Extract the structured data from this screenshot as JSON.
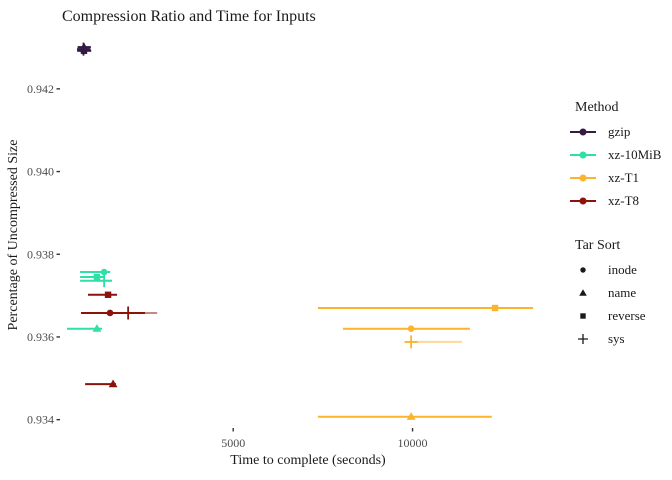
{
  "chart_data": {
    "type": "scatter",
    "title": "Compression Ratio and Time for Inputs",
    "xlabel": "Time to complete (seconds)",
    "ylabel": "Percentage of Uncompressed Size",
    "x_ticks": [
      5000,
      10000
    ],
    "y_ticks": [
      0.934,
      0.936,
      0.938,
      0.94,
      0.942
    ],
    "xlim": [
      170,
      14000
    ],
    "ylim": [
      0.93375,
      0.94323
    ],
    "grid": false,
    "legend_position": "right",
    "shape_map": {
      "inode": "circle",
      "name": "triangle",
      "reverse": "square",
      "sys": "plus"
    },
    "series": [
      {
        "name": "gzip",
        "color": "#351B44",
        "points": [
          {
            "sort": "inode",
            "time": 825,
            "ratio": 0.94293,
            "time_min": 650,
            "time_max": 1030
          },
          {
            "sort": "name",
            "time": 839,
            "ratio": 0.94301,
            "time_min": 660,
            "time_max": 1030
          },
          {
            "sort": "reverse",
            "time": 839,
            "ratio": 0.94292,
            "time_min": 650,
            "time_max": 1040
          },
          {
            "sort": "sys",
            "time": 825,
            "ratio": 0.94296,
            "time_min": 660,
            "time_max": 1020
          }
        ]
      },
      {
        "name": "xz-10MiB",
        "color": "#2EDFA6",
        "points": [
          {
            "sort": "inode",
            "time": 1400,
            "ratio": 0.93757,
            "time_min": 730,
            "time_max": 1570
          },
          {
            "sort": "reverse",
            "time": 1200,
            "ratio": 0.93745,
            "time_min": 730,
            "time_max": 1425
          },
          {
            "sort": "sys",
            "time": 1400,
            "ratio": 0.93736,
            "time_min": 730,
            "time_max": 1620
          },
          {
            "sort": "name",
            "time": 1200,
            "ratio": 0.9362,
            "time_min": 365,
            "time_max": 1340
          }
        ]
      },
      {
        "name": "xz-T1",
        "color": "#FCB42C",
        "points": [
          {
            "sort": "reverse",
            "time": 12300,
            "ratio": 0.9367,
            "time_min": 7360,
            "time_max": 13360
          },
          {
            "sort": "inode",
            "time": 9960,
            "ratio": 0.9362,
            "time_min": 8060,
            "time_max": 11600
          },
          {
            "sort": "sys",
            "time": 9960,
            "ratio": 0.93588,
            "time_min": 9960,
            "time_max": 11380,
            "bar_alpha": 0.5
          },
          {
            "sort": "name",
            "time": 9960,
            "ratio": 0.93407,
            "time_min": 7360,
            "time_max": 12210
          }
        ]
      },
      {
        "name": "xz-T8",
        "color": "#8C130B",
        "points": [
          {
            "sort": "reverse",
            "time": 1510,
            "ratio": 0.93702,
            "time_min": 950,
            "time_max": 1760
          },
          {
            "sort": "inode",
            "time": 1565,
            "ratio": 0.93658,
            "time_min": 755,
            "time_max": 2540
          },
          {
            "sort": "sys",
            "time": 2070,
            "ratio": 0.93658,
            "time_min": 1260,
            "time_max": 2880,
            "bar_alpha": 0.5
          },
          {
            "sort": "name",
            "time": 1650,
            "ratio": 0.93486,
            "time_min": 870,
            "time_max": 1730
          }
        ]
      }
    ]
  },
  "legend": {
    "method_title": "Method",
    "sort_title": "Tar Sort",
    "sort_items": [
      {
        "label": "inode",
        "shape": "circle"
      },
      {
        "label": "name",
        "shape": "triangle"
      },
      {
        "label": "reverse",
        "shape": "square"
      },
      {
        "label": "sys",
        "shape": "plus"
      }
    ]
  }
}
